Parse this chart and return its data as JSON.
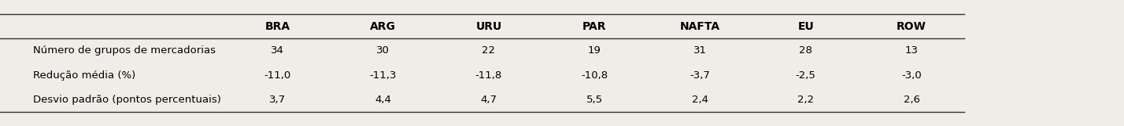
{
  "columns": [
    "BRA",
    "ARG",
    "URU",
    "PAR",
    "NAFTA",
    "EU",
    "ROW"
  ],
  "rows": [
    [
      "Número de grupos de mercadorias",
      "34",
      "30",
      "22",
      "19",
      "31",
      "28",
      "13"
    ],
    [
      "Redução média (%)",
      "-11,0",
      "-11,3",
      "-11,8",
      "-10,8",
      "-3,7",
      "-2,5",
      "-3,0"
    ],
    [
      "Desvio padrão (pontos percentuais)",
      "3,7",
      "4,4",
      "4,7",
      "5,5",
      "2,4",
      "2,2",
      "2,6"
    ]
  ],
  "background_color": "#f0ede8",
  "header_fontsize": 10,
  "cell_fontsize": 9.5,
  "figsize": [
    14.28,
    1.61
  ],
  "dpi": 100,
  "line_color": "#333333",
  "line_lw": 1.0
}
